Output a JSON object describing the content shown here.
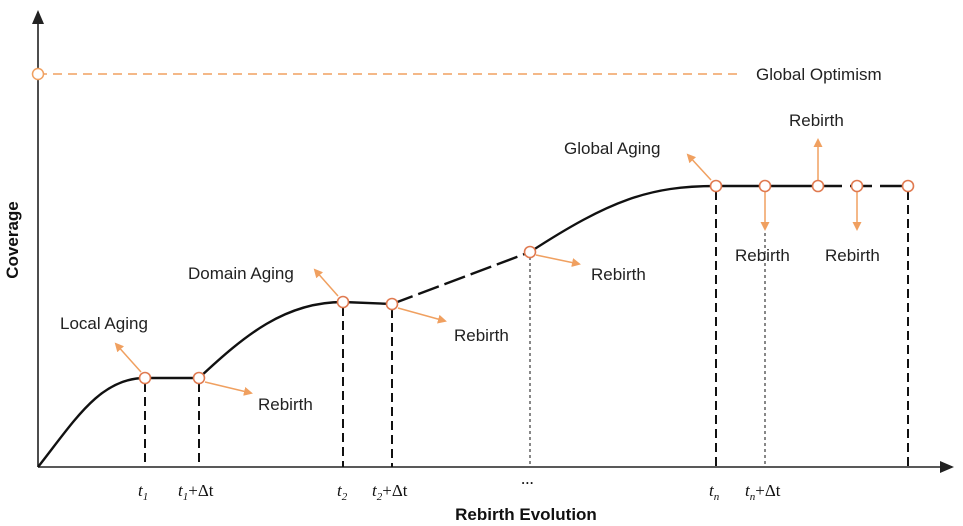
{
  "axes": {
    "x_title": "Rebirth Evolution",
    "y_title": "Coverage"
  },
  "global_optimism": {
    "label": "Global Optimism"
  },
  "stages": {
    "local": {
      "label": "Local Aging"
    },
    "domain": {
      "label": "Domain Aging"
    },
    "global": {
      "label": "Global Aging"
    }
  },
  "rebirth_labels": [
    "Rebirth",
    "Rebirth",
    "Rebirth",
    "Rebirth",
    "Rebirth",
    "Rebirth"
  ],
  "ticks": {
    "t1": {
      "var": "t",
      "sub": "1",
      "suffix": ""
    },
    "t1dt": {
      "var": "t",
      "sub": "1",
      "suffix": "+Δt"
    },
    "t2": {
      "var": "t",
      "sub": "2",
      "suffix": ""
    },
    "t2dt": {
      "var": "t",
      "sub": "2",
      "suffix": "+Δt"
    },
    "ellipsis": "...",
    "tn": {
      "var": "t",
      "sub": "n",
      "suffix": ""
    },
    "tndt": {
      "var": "t",
      "sub": "n",
      "suffix": "+Δt"
    }
  },
  "colors": {
    "accent": "#f0a060",
    "curve": "#111111",
    "axis": "#222222"
  }
}
